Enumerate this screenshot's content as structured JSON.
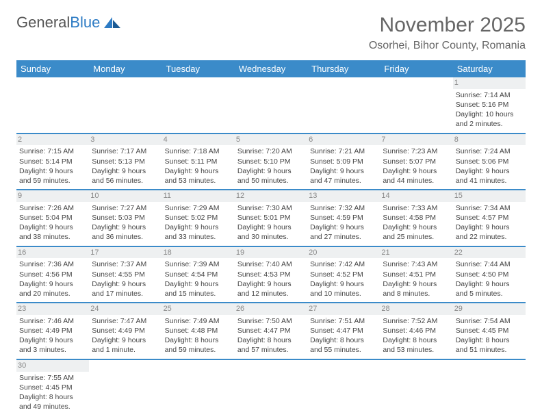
{
  "logo": {
    "part1": "General",
    "part2": "Blue"
  },
  "title": "November 2025",
  "subtitle": "Osorhei, Bihor County, Romania",
  "colors": {
    "header_bg": "#3b8bc9",
    "header_text": "#ffffff",
    "title_color": "#666666",
    "text_color": "#444444",
    "daynum_bg": "#eef0f1",
    "border": "#3b8bc9"
  },
  "font_sizes": {
    "title": 30,
    "subtitle": 16,
    "header": 13,
    "cell": 10.5
  },
  "days": [
    "Sunday",
    "Monday",
    "Tuesday",
    "Wednesday",
    "Thursday",
    "Friday",
    "Saturday"
  ],
  "weeks": [
    [
      {
        "n": "",
        "sr": "",
        "ss": "",
        "dl": ""
      },
      {
        "n": "",
        "sr": "",
        "ss": "",
        "dl": ""
      },
      {
        "n": "",
        "sr": "",
        "ss": "",
        "dl": ""
      },
      {
        "n": "",
        "sr": "",
        "ss": "",
        "dl": ""
      },
      {
        "n": "",
        "sr": "",
        "ss": "",
        "dl": ""
      },
      {
        "n": "",
        "sr": "",
        "ss": "",
        "dl": ""
      },
      {
        "n": "1",
        "sr": "Sunrise: 7:14 AM",
        "ss": "Sunset: 5:16 PM",
        "dl": "Daylight: 10 hours and 2 minutes."
      }
    ],
    [
      {
        "n": "2",
        "sr": "Sunrise: 7:15 AM",
        "ss": "Sunset: 5:14 PM",
        "dl": "Daylight: 9 hours and 59 minutes."
      },
      {
        "n": "3",
        "sr": "Sunrise: 7:17 AM",
        "ss": "Sunset: 5:13 PM",
        "dl": "Daylight: 9 hours and 56 minutes."
      },
      {
        "n": "4",
        "sr": "Sunrise: 7:18 AM",
        "ss": "Sunset: 5:11 PM",
        "dl": "Daylight: 9 hours and 53 minutes."
      },
      {
        "n": "5",
        "sr": "Sunrise: 7:20 AM",
        "ss": "Sunset: 5:10 PM",
        "dl": "Daylight: 9 hours and 50 minutes."
      },
      {
        "n": "6",
        "sr": "Sunrise: 7:21 AM",
        "ss": "Sunset: 5:09 PM",
        "dl": "Daylight: 9 hours and 47 minutes."
      },
      {
        "n": "7",
        "sr": "Sunrise: 7:23 AM",
        "ss": "Sunset: 5:07 PM",
        "dl": "Daylight: 9 hours and 44 minutes."
      },
      {
        "n": "8",
        "sr": "Sunrise: 7:24 AM",
        "ss": "Sunset: 5:06 PM",
        "dl": "Daylight: 9 hours and 41 minutes."
      }
    ],
    [
      {
        "n": "9",
        "sr": "Sunrise: 7:26 AM",
        "ss": "Sunset: 5:04 PM",
        "dl": "Daylight: 9 hours and 38 minutes."
      },
      {
        "n": "10",
        "sr": "Sunrise: 7:27 AM",
        "ss": "Sunset: 5:03 PM",
        "dl": "Daylight: 9 hours and 36 minutes."
      },
      {
        "n": "11",
        "sr": "Sunrise: 7:29 AM",
        "ss": "Sunset: 5:02 PM",
        "dl": "Daylight: 9 hours and 33 minutes."
      },
      {
        "n": "12",
        "sr": "Sunrise: 7:30 AM",
        "ss": "Sunset: 5:01 PM",
        "dl": "Daylight: 9 hours and 30 minutes."
      },
      {
        "n": "13",
        "sr": "Sunrise: 7:32 AM",
        "ss": "Sunset: 4:59 PM",
        "dl": "Daylight: 9 hours and 27 minutes."
      },
      {
        "n": "14",
        "sr": "Sunrise: 7:33 AM",
        "ss": "Sunset: 4:58 PM",
        "dl": "Daylight: 9 hours and 25 minutes."
      },
      {
        "n": "15",
        "sr": "Sunrise: 7:34 AM",
        "ss": "Sunset: 4:57 PM",
        "dl": "Daylight: 9 hours and 22 minutes."
      }
    ],
    [
      {
        "n": "16",
        "sr": "Sunrise: 7:36 AM",
        "ss": "Sunset: 4:56 PM",
        "dl": "Daylight: 9 hours and 20 minutes."
      },
      {
        "n": "17",
        "sr": "Sunrise: 7:37 AM",
        "ss": "Sunset: 4:55 PM",
        "dl": "Daylight: 9 hours and 17 minutes."
      },
      {
        "n": "18",
        "sr": "Sunrise: 7:39 AM",
        "ss": "Sunset: 4:54 PM",
        "dl": "Daylight: 9 hours and 15 minutes."
      },
      {
        "n": "19",
        "sr": "Sunrise: 7:40 AM",
        "ss": "Sunset: 4:53 PM",
        "dl": "Daylight: 9 hours and 12 minutes."
      },
      {
        "n": "20",
        "sr": "Sunrise: 7:42 AM",
        "ss": "Sunset: 4:52 PM",
        "dl": "Daylight: 9 hours and 10 minutes."
      },
      {
        "n": "21",
        "sr": "Sunrise: 7:43 AM",
        "ss": "Sunset: 4:51 PM",
        "dl": "Daylight: 9 hours and 8 minutes."
      },
      {
        "n": "22",
        "sr": "Sunrise: 7:44 AM",
        "ss": "Sunset: 4:50 PM",
        "dl": "Daylight: 9 hours and 5 minutes."
      }
    ],
    [
      {
        "n": "23",
        "sr": "Sunrise: 7:46 AM",
        "ss": "Sunset: 4:49 PM",
        "dl": "Daylight: 9 hours and 3 minutes."
      },
      {
        "n": "24",
        "sr": "Sunrise: 7:47 AM",
        "ss": "Sunset: 4:49 PM",
        "dl": "Daylight: 9 hours and 1 minute."
      },
      {
        "n": "25",
        "sr": "Sunrise: 7:49 AM",
        "ss": "Sunset: 4:48 PM",
        "dl": "Daylight: 8 hours and 59 minutes."
      },
      {
        "n": "26",
        "sr": "Sunrise: 7:50 AM",
        "ss": "Sunset: 4:47 PM",
        "dl": "Daylight: 8 hours and 57 minutes."
      },
      {
        "n": "27",
        "sr": "Sunrise: 7:51 AM",
        "ss": "Sunset: 4:47 PM",
        "dl": "Daylight: 8 hours and 55 minutes."
      },
      {
        "n": "28",
        "sr": "Sunrise: 7:52 AM",
        "ss": "Sunset: 4:46 PM",
        "dl": "Daylight: 8 hours and 53 minutes."
      },
      {
        "n": "29",
        "sr": "Sunrise: 7:54 AM",
        "ss": "Sunset: 4:45 PM",
        "dl": "Daylight: 8 hours and 51 minutes."
      }
    ],
    [
      {
        "n": "30",
        "sr": "Sunrise: 7:55 AM",
        "ss": "Sunset: 4:45 PM",
        "dl": "Daylight: 8 hours and 49 minutes."
      },
      {
        "n": "",
        "sr": "",
        "ss": "",
        "dl": ""
      },
      {
        "n": "",
        "sr": "",
        "ss": "",
        "dl": ""
      },
      {
        "n": "",
        "sr": "",
        "ss": "",
        "dl": ""
      },
      {
        "n": "",
        "sr": "",
        "ss": "",
        "dl": ""
      },
      {
        "n": "",
        "sr": "",
        "ss": "",
        "dl": ""
      },
      {
        "n": "",
        "sr": "",
        "ss": "",
        "dl": ""
      }
    ]
  ]
}
